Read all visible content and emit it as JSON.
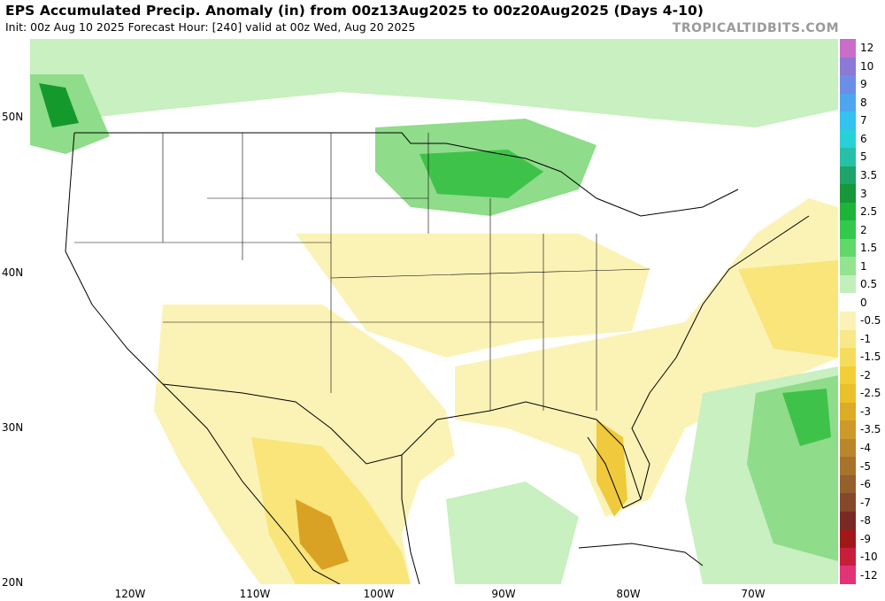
{
  "header": {
    "title": "EPS Accumulated Precip. Anomaly (in) from 00z13Aug2025 to 00z20Aug2025 (Days 4-10)",
    "subtitle": "Init: 00z Aug 10 2025   Forecast Hour: [240]   valid at 00z Wed, Aug 20 2025",
    "brand": "TROPICALTIDBITS.COM"
  },
  "map": {
    "lat_labels": [
      "50N",
      "40N",
      "30N",
      "20N"
    ],
    "lon_labels": [
      "120W",
      "110W",
      "100W",
      "90W",
      "80W",
      "70W"
    ],
    "colors": {
      "dry_light": "#fbf3b6",
      "dry_mid": "#f9e57a",
      "dry_strong": "#f0c93c",
      "dry_deep": "#d9a224",
      "wet_light": "#c9f0c0",
      "wet_mid": "#8fdc8a",
      "wet_strong": "#3fc24a",
      "wet_deep": "#149a2c",
      "border": "#000000"
    }
  },
  "colorbar": {
    "labels": [
      "12",
      "10",
      "9",
      "8",
      "7",
      "6",
      "5",
      "3.5",
      "3",
      "2.5",
      "2",
      "1.5",
      "1",
      "0.5",
      "0",
      "-0.5",
      "-1",
      "-1.5",
      "-2",
      "-2.5",
      "-3",
      "-3.5",
      "-4",
      "-5",
      "-6",
      "-7",
      "-8",
      "-9",
      "-10",
      "-12"
    ],
    "colors": [
      "#c86ec8",
      "#8a7ad6",
      "#6d8ee6",
      "#4ea6f0",
      "#35c2f0",
      "#2ad0d8",
      "#26bfa8",
      "#1fa36a",
      "#17973a",
      "#1eb43a",
      "#33c94c",
      "#63d86a",
      "#93e391",
      "#c3efbd",
      "#ffffff",
      "#fbf3b6",
      "#f8e88a",
      "#f6dc5c",
      "#f2cf38",
      "#e9c12a",
      "#dcac27",
      "#cc9a2a",
      "#b9862c",
      "#a7722c",
      "#94602c",
      "#86482a",
      "#7a2a24",
      "#a01818",
      "#c81e3c",
      "#e23278"
    ]
  }
}
